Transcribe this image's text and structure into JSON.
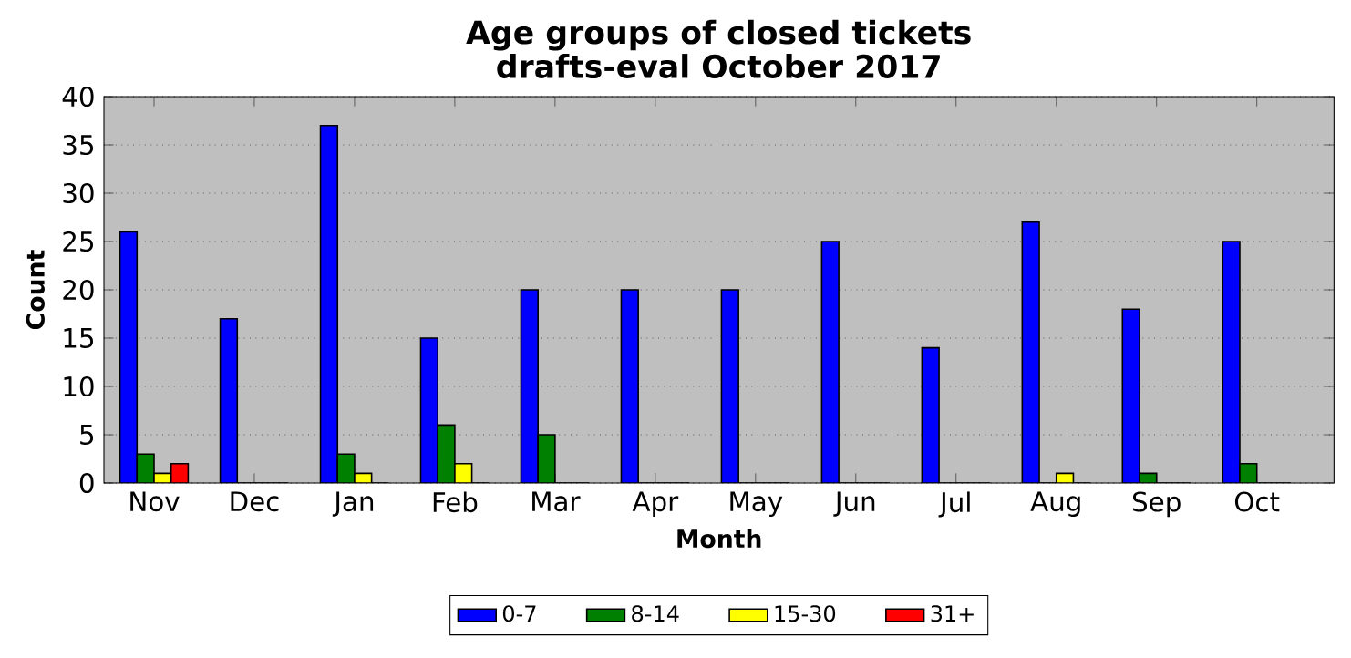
{
  "chart_data": {
    "type": "bar",
    "title": "Age groups of closed tickets\ndrafts-eval October 2017",
    "xlabel": "Month",
    "ylabel": "Count",
    "categories": [
      "Nov",
      "Dec",
      "Jan",
      "Feb",
      "Mar",
      "Apr",
      "May",
      "Jun",
      "Jul",
      "Aug",
      "Sep",
      "Oct"
    ],
    "series": [
      {
        "name": "0-7",
        "color": "#0000ff",
        "values": [
          26,
          17,
          37,
          15,
          20,
          20,
          20,
          25,
          14,
          27,
          18,
          25
        ]
      },
      {
        "name": "8-14",
        "color": "#008000",
        "values": [
          3,
          0,
          3,
          6,
          5,
          0,
          0,
          0,
          0,
          0,
          1,
          2
        ]
      },
      {
        "name": "15-30",
        "color": "#ffff00",
        "values": [
          1,
          0,
          1,
          2,
          0,
          0,
          0,
          0,
          0,
          1,
          0,
          0
        ]
      },
      {
        "name": "31+",
        "color": "#ff0000",
        "values": [
          2,
          0,
          0,
          0,
          0,
          0,
          0,
          0,
          0,
          0,
          0,
          0
        ]
      }
    ],
    "ylim": [
      0,
      40
    ],
    "yticks": [
      0,
      5,
      10,
      15,
      20,
      25,
      30,
      35,
      40
    ],
    "grid": "y",
    "legend": "bottom"
  }
}
